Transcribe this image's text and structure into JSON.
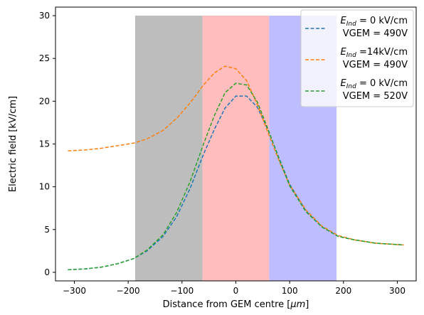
{
  "chart_data": {
    "type": "line",
    "title": "",
    "xlabel_prefix": "Distance from GEM centre [",
    "xlabel_unit": "μm",
    "xlabel_suffix": "]",
    "ylabel": "Electric field [kV/cm]",
    "xlim": [
      -335,
      335
    ],
    "ylim": [
      -1,
      31
    ],
    "xticks": [
      -300,
      -200,
      -100,
      0,
      100,
      200,
      300
    ],
    "yticks": [
      0,
      5,
      10,
      15,
      20,
      25,
      30
    ],
    "grid": false,
    "legend_position": "top-right",
    "regions": [
      {
        "x0": -187,
        "x1": -62,
        "y0": -1,
        "y1": 30,
        "color": "#bdbdbd"
      },
      {
        "x0": -62,
        "x1": 62,
        "y0": -1,
        "y1": 30,
        "color": "#ffbdbd"
      },
      {
        "x0": 62,
        "x1": 187,
        "y0": -1,
        "y1": 30,
        "color": "#bdbdff"
      }
    ],
    "series": [
      {
        "color": "#1f77b4",
        "legend_line1": {
          "symbol": "E",
          "subscript": "Ind",
          "rest": " = 0 kV/cm"
        },
        "legend_line2": "VGEM = 490V",
        "x": [
          -312,
          -280,
          -250,
          -220,
          -190,
          -165,
          -135,
          -110,
          -85,
          -60,
          -40,
          -20,
          0,
          20,
          40,
          60,
          80,
          100,
          130,
          160,
          190,
          220,
          260,
          312
        ],
        "y": [
          0.3,
          0.4,
          0.6,
          1.0,
          1.6,
          2.5,
          4.2,
          6.5,
          9.8,
          13.8,
          16.7,
          19.2,
          20.6,
          20.6,
          19.3,
          16.6,
          13.4,
          10.3,
          7.2,
          5.3,
          4.2,
          3.8,
          3.4,
          3.2
        ]
      },
      {
        "color": "#ff7f0e",
        "legend_line1": {
          "symbol": "E",
          "subscript": "Ind",
          "rest": " =14kV/cm"
        },
        "legend_line2": "VGEM = 490V",
        "x": [
          -312,
          -280,
          -250,
          -220,
          -190,
          -165,
          -135,
          -110,
          -85,
          -60,
          -40,
          -20,
          0,
          20,
          40,
          60,
          80,
          100,
          130,
          160,
          190,
          220,
          260,
          312
        ],
        "y": [
          14.2,
          14.3,
          14.5,
          14.8,
          15.1,
          15.6,
          16.6,
          18.0,
          19.8,
          21.9,
          23.3,
          24.1,
          23.8,
          22.4,
          19.6,
          16.3,
          13.1,
          10.2,
          7.3,
          5.4,
          4.3,
          3.8,
          3.4,
          3.2
        ]
      },
      {
        "color": "#2ca02c",
        "legend_line1": {
          "symbol": "E",
          "subscript": "Ind",
          "rest": " = 0 kV/cm"
        },
        "legend_line2": "VGEM = 520V",
        "x": [
          -312,
          -280,
          -250,
          -220,
          -190,
          -165,
          -135,
          -110,
          -85,
          -60,
          -40,
          -20,
          0,
          20,
          40,
          60,
          80,
          100,
          130,
          160,
          190,
          220,
          260,
          312
        ],
        "y": [
          0.3,
          0.4,
          0.6,
          1.0,
          1.6,
          2.6,
          4.4,
          7.0,
          10.6,
          15.0,
          18.3,
          21.0,
          22.1,
          21.9,
          19.9,
          16.7,
          13.3,
          10.1,
          7.1,
          5.3,
          4.2,
          3.8,
          3.4,
          3.2
        ]
      }
    ]
  }
}
